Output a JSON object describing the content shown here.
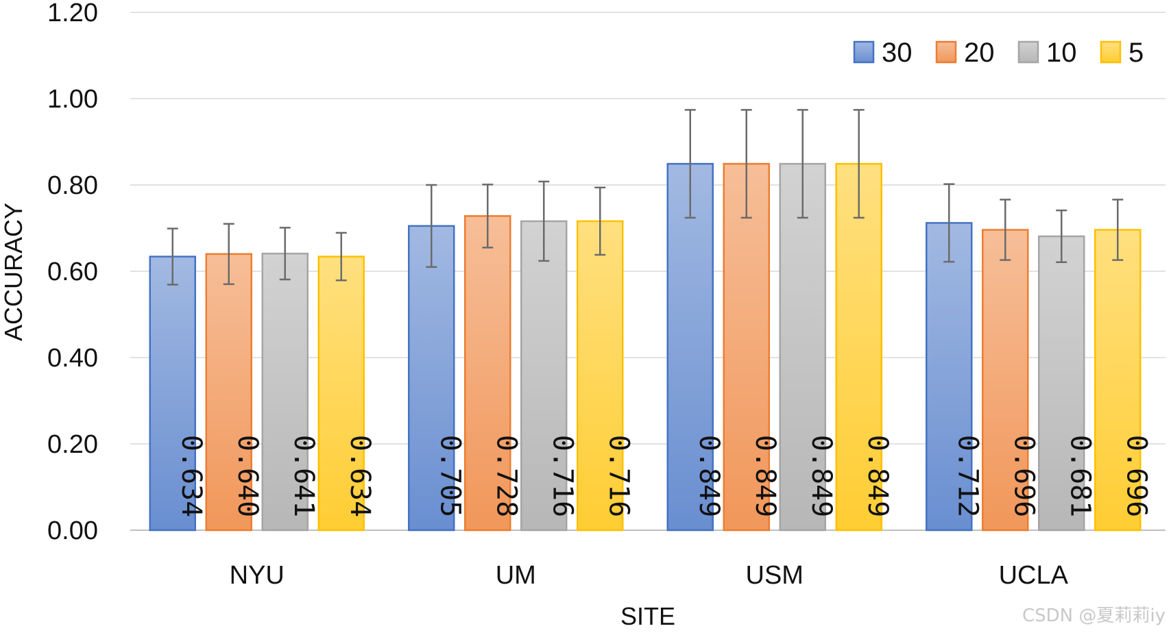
{
  "chart_data": {
    "type": "bar",
    "title": "",
    "xlabel": "SITE",
    "ylabel": "ACCURACY",
    "ylim": [
      0,
      1.2
    ],
    "yticks": [
      "0.00",
      "0.20",
      "0.40",
      "0.60",
      "0.80",
      "1.00",
      "1.20"
    ],
    "categories": [
      "NYU",
      "UM",
      "USM",
      "UCLA"
    ],
    "legend_position": "top-right",
    "series": [
      {
        "name": "30",
        "color": "#4472C4",
        "values": [
          0.634,
          0.705,
          0.849,
          0.712
        ],
        "labels": [
          "0.634",
          "0.705",
          "0.849",
          "0.712"
        ],
        "error": [
          0.065,
          0.095,
          0.125,
          0.09
        ]
      },
      {
        "name": "20",
        "color": "#ED7D31",
        "values": [
          0.64,
          0.728,
          0.849,
          0.696
        ],
        "labels": [
          "0.640",
          "0.728",
          "0.849",
          "0.696"
        ],
        "error": [
          0.07,
          0.073,
          0.125,
          0.07
        ]
      },
      {
        "name": "10",
        "color": "#A5A5A5",
        "values": [
          0.641,
          0.716,
          0.849,
          0.681
        ],
        "labels": [
          "0.641",
          "0.716",
          "0.849",
          "0.681"
        ],
        "error": [
          0.06,
          0.092,
          0.125,
          0.06
        ]
      },
      {
        "name": "5",
        "color": "#FFC000",
        "values": [
          0.634,
          0.716,
          0.849,
          0.696
        ],
        "labels": [
          "0.634",
          "0.716",
          "0.849",
          "0.696"
        ],
        "error": [
          0.055,
          0.078,
          0.125,
          0.07
        ]
      }
    ],
    "grid": true
  },
  "watermark": "CSDN @夏莉莉iy"
}
